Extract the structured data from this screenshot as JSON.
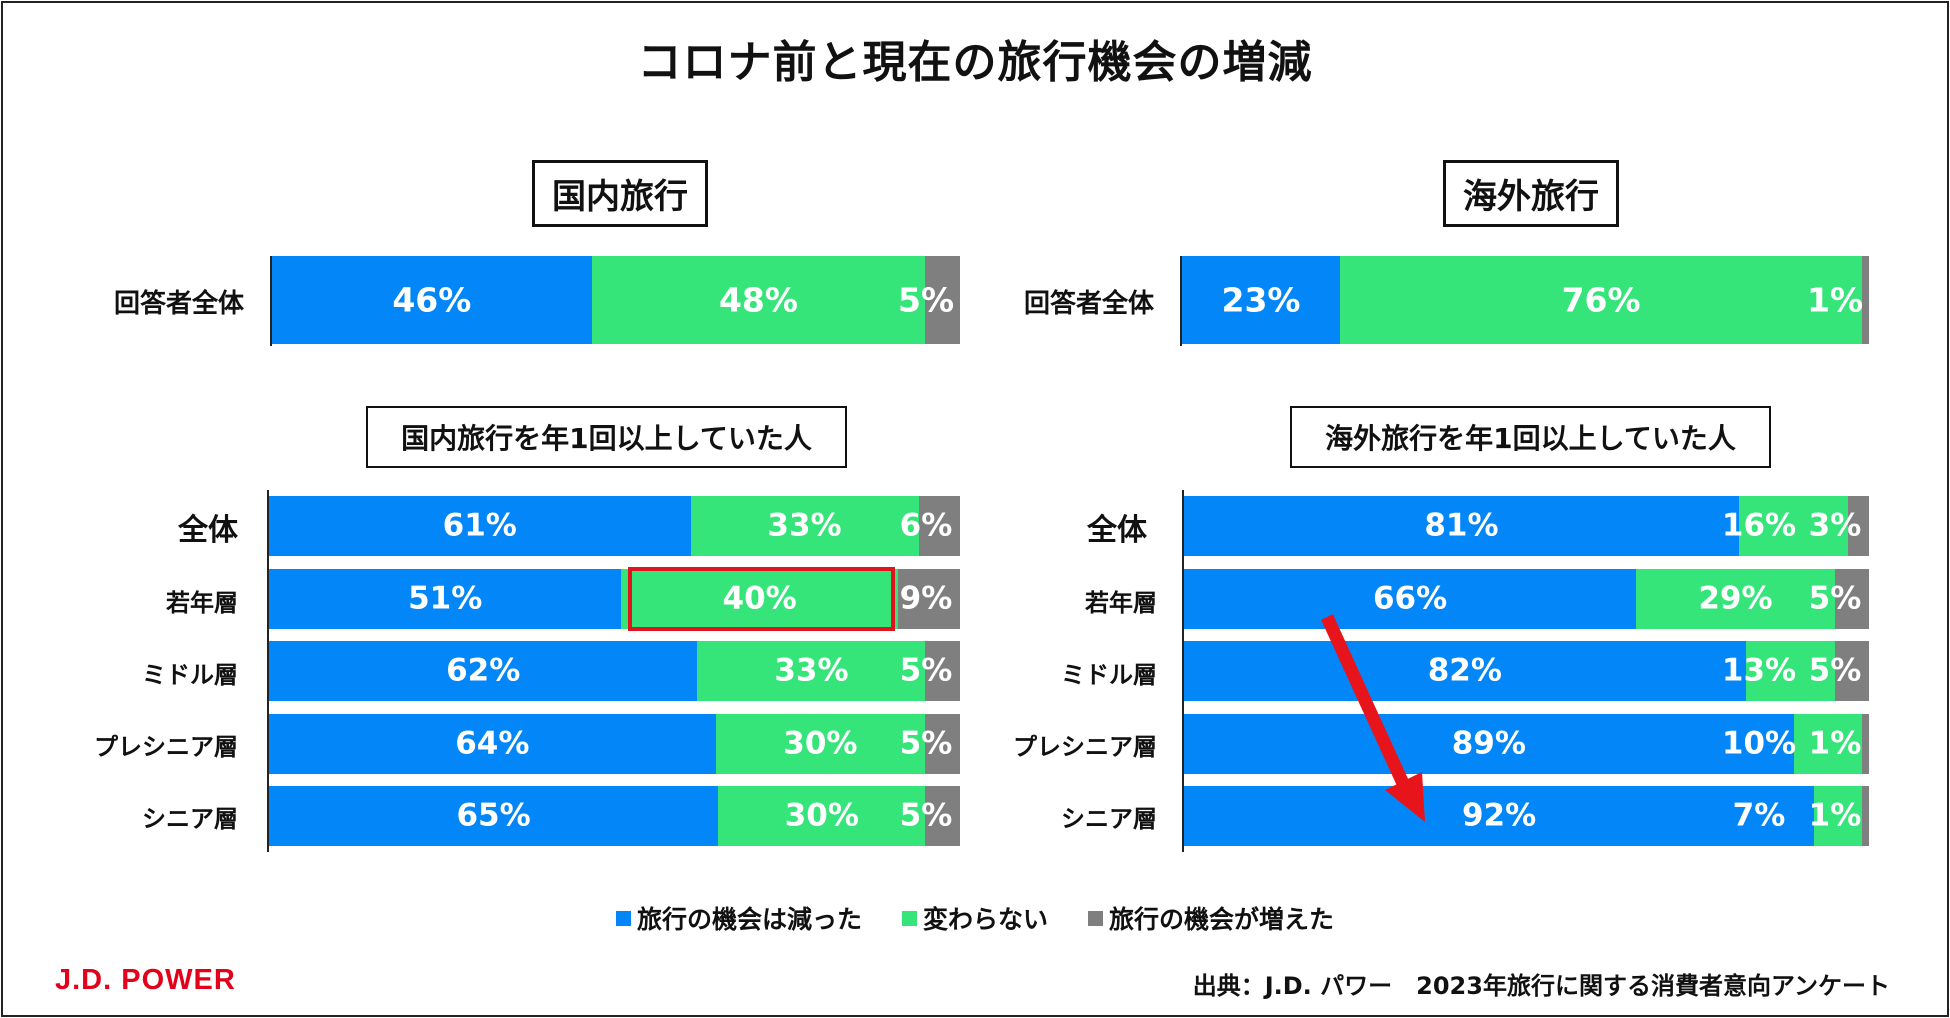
{
  "title": "コロナ前と現在の旅行機会の増減",
  "colors": {
    "decreased": "#0386f7",
    "unchanged": "#36e57a",
    "increased": "#7f7f7f",
    "highlight": "#e0141e",
    "arrow": "#e8141c"
  },
  "panels": {
    "domestic": {
      "heading": "国内旅行",
      "overall_label": "回答者全体",
      "subheading": "国内旅行を年1回以上していた人",
      "group_labels": [
        "全体",
        "若年層",
        "ミドル層",
        "プレシニア層",
        "シニア層"
      ]
    },
    "overseas": {
      "heading": "海外旅行",
      "overall_label": "回答者全体",
      "subheading": "海外旅行を年1回以上していた人",
      "group_labels": [
        "全体",
        "若年層",
        "ミドル層",
        "プレシニア層",
        "シニア層"
      ]
    }
  },
  "legend": {
    "decreased": "旅行の機会は減った",
    "unchanged": "変わらない",
    "increased": "旅行の機会が増えた"
  },
  "logo": "J.D. POWER",
  "source": "出典：J.D. パワー　2023年旅行に関する消費者意向アンケート",
  "chart_data": [
    {
      "type": "bar",
      "stacked": true,
      "orientation": "horizontal",
      "title": "国内旅行",
      "categories": [
        "回答者全体"
      ],
      "series": [
        {
          "name": "旅行の機会は減った",
          "values": [
            46
          ],
          "labels": [
            "46%"
          ]
        },
        {
          "name": "変わらない",
          "values": [
            48
          ],
          "labels": [
            "48%"
          ]
        },
        {
          "name": "旅行の機会が増えた",
          "values": [
            5
          ],
          "labels": [
            "5%"
          ]
        }
      ]
    },
    {
      "type": "bar",
      "stacked": true,
      "orientation": "horizontal",
      "title": "国内旅行を年1回以上していた人",
      "categories": [
        "全体",
        "若年層",
        "ミドル層",
        "プレシニア層",
        "シニア層"
      ],
      "highlight": {
        "series": "変わらない",
        "category": "若年層"
      },
      "series": [
        {
          "name": "旅行の機会は減った",
          "values": [
            61,
            51,
            62,
            64,
            65
          ],
          "labels": [
            "61%",
            "51%",
            "62%",
            "64%",
            "65%"
          ]
        },
        {
          "name": "変わらない",
          "values": [
            33,
            40,
            33,
            30,
            30
          ],
          "labels": [
            "33%",
            "40%",
            "33%",
            "30%",
            "30%"
          ]
        },
        {
          "name": "旅行の機会が増えた",
          "values": [
            6,
            9,
            5,
            5,
            5
          ],
          "labels": [
            "6%",
            "9%",
            "5%",
            "5%",
            "5%"
          ]
        }
      ]
    },
    {
      "type": "bar",
      "stacked": true,
      "orientation": "horizontal",
      "title": "海外旅行",
      "categories": [
        "回答者全体"
      ],
      "series": [
        {
          "name": "旅行の機会は減った",
          "values": [
            23
          ],
          "labels": [
            "23%"
          ]
        },
        {
          "name": "変わらない",
          "values": [
            76
          ],
          "labels": [
            "76%"
          ]
        },
        {
          "name": "旅行の機会が増えた",
          "values": [
            1
          ],
          "labels": [
            "1%"
          ]
        }
      ]
    },
    {
      "type": "bar",
      "stacked": true,
      "orientation": "horizontal",
      "title": "海外旅行を年1回以上していた人",
      "categories": [
        "全体",
        "若年層",
        "ミドル層",
        "プレシニア層",
        "シニア層"
      ],
      "annotation": "arrow from 若年層 to シニア層 across the decreased series",
      "series": [
        {
          "name": "旅行の機会は減った",
          "values": [
            81,
            66,
            82,
            89,
            92
          ],
          "labels": [
            "81%",
            "66%",
            "82%",
            "89%",
            "92%"
          ]
        },
        {
          "name": "変わらない",
          "values": [
            16,
            29,
            13,
            10,
            7
          ],
          "labels": [
            "16%",
            "29%",
            "13%",
            "10%",
            "7%"
          ]
        },
        {
          "name": "旅行の機会が増えた",
          "values": [
            3,
            5,
            5,
            1,
            1
          ],
          "labels": [
            "3%",
            "5%",
            "5%",
            "1%",
            "1%"
          ]
        }
      ]
    }
  ]
}
